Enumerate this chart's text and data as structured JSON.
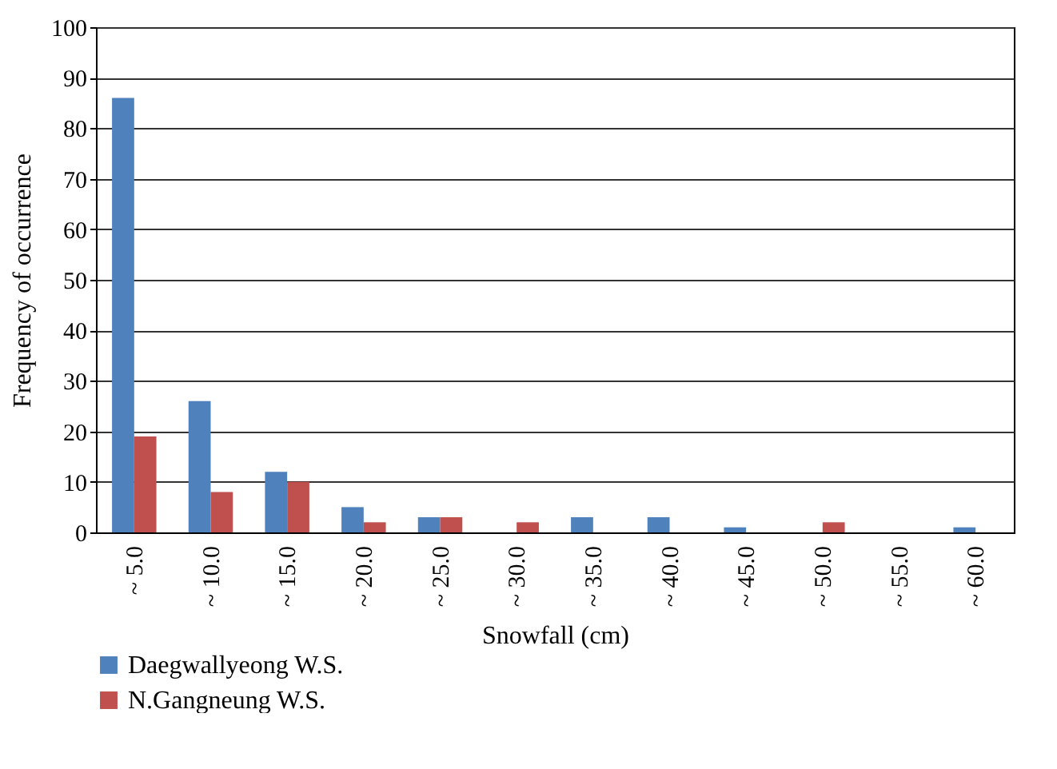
{
  "chart_data": {
    "type": "bar",
    "xlabel": "Snowfall (cm)",
    "ylabel": "Frequency of occurrence",
    "categories": [
      "~ 5.0",
      "~ 10.0",
      "~ 15.0",
      "~ 20.0",
      "~ 25.0",
      "~ 30.0",
      "~ 35.0",
      "~ 40.0",
      "~ 45.0",
      "~ 50.0",
      "~ 55.0",
      "~ 60.0"
    ],
    "series": [
      {
        "name": "Daegwallyeong W.S.",
        "color": "#4f81bd",
        "values": [
          86,
          26,
          12,
          5,
          3,
          0,
          3,
          3,
          1,
          0,
          0,
          1
        ]
      },
      {
        "name": "N.Gangneung W.S.",
        "color": "#c0504d",
        "values": [
          19,
          8,
          10,
          2,
          3,
          2,
          0,
          0,
          0,
          2,
          0,
          0
        ]
      }
    ],
    "ylim": [
      0,
      100
    ],
    "yticks": [
      0,
      10,
      20,
      30,
      40,
      50,
      60,
      70,
      80,
      90,
      100
    ],
    "grid": "y",
    "legend": "bottom left"
  }
}
